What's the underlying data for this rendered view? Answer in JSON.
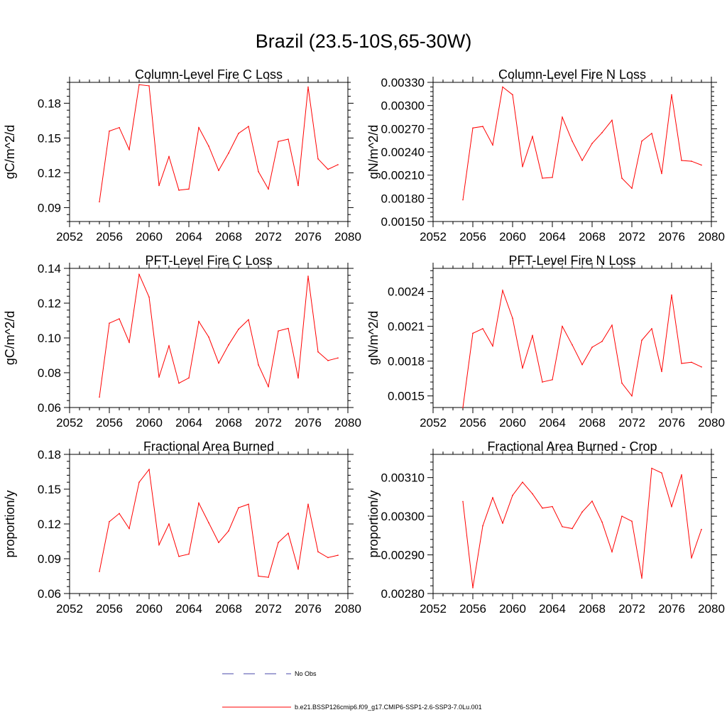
{
  "figure": {
    "title": "Brazil (23.5-10S,65-30W)"
  },
  "legend": {
    "entries": [
      {
        "label": "No Obs",
        "color": "#4a4aa8",
        "style": "dashed"
      },
      {
        "label": "b.e21.BSSP126cmip6.f09_g17.CMIP6-SSP1-2.6-SSP3-7.0Lu.001",
        "color": "#ff0000",
        "style": "solid"
      }
    ]
  },
  "chart_data": [
    {
      "type": "line",
      "title": "Column-Level Fire C Loss",
      "ylabel": "gC/m^2/d",
      "xlim": [
        2052,
        2080
      ],
      "ylim": [
        0.078,
        0.198
      ],
      "xticks": [
        2052,
        2056,
        2060,
        2064,
        2068,
        2072,
        2076,
        2080
      ],
      "xtick_labels": [
        "2052",
        "2056",
        "2060",
        "2064",
        "2068",
        "2072",
        "2076",
        "2080"
      ],
      "yticks": [
        0.09,
        0.12,
        0.15,
        0.18
      ],
      "ytick_labels": [
        "0.09",
        "0.12",
        "0.15",
        "0.18"
      ],
      "series": [
        {
          "color": "#ff0000",
          "x": [
            2055,
            2056,
            2057,
            2058,
            2059,
            2060,
            2061,
            2062,
            2063,
            2064,
            2065,
            2066,
            2067,
            2068,
            2069,
            2070,
            2071,
            2072,
            2073,
            2074,
            2075,
            2076,
            2077,
            2078,
            2079
          ],
          "values": [
            0.095,
            0.156,
            0.159,
            0.14,
            0.196,
            0.195,
            0.109,
            0.134,
            0.105,
            0.106,
            0.159,
            0.143,
            0.122,
            0.137,
            0.154,
            0.16,
            0.121,
            0.106,
            0.147,
            0.149,
            0.109,
            0.194,
            0.132,
            0.123,
            0.127
          ]
        }
      ]
    },
    {
      "type": "line",
      "title": "Column-Level Fire N Loss",
      "ylabel": "gN/m^2/d",
      "xlim": [
        2052,
        2080
      ],
      "ylim": [
        0.0015,
        0.0033
      ],
      "xticks": [
        2052,
        2056,
        2060,
        2064,
        2068,
        2072,
        2076,
        2080
      ],
      "xtick_labels": [
        "2052",
        "2056",
        "2060",
        "2064",
        "2068",
        "2072",
        "2076",
        "2080"
      ],
      "yticks": [
        0.0015,
        0.0018,
        0.0021,
        0.0024,
        0.0027,
        0.003,
        0.0033
      ],
      "ytick_labels": [
        "0.00150",
        "0.00180",
        "0.00210",
        "0.00240",
        "0.00270",
        "0.00300",
        "0.00330"
      ],
      "series": [
        {
          "color": "#ff0000",
          "x": [
            2055,
            2056,
            2057,
            2058,
            2059,
            2060,
            2061,
            2062,
            2063,
            2064,
            2065,
            2066,
            2067,
            2068,
            2069,
            2070,
            2071,
            2072,
            2073,
            2074,
            2075,
            2076,
            2077,
            2078,
            2079
          ],
          "values": [
            0.00178,
            0.00271,
            0.00273,
            0.00249,
            0.00324,
            0.00314,
            0.00221,
            0.0026,
            0.00206,
            0.00207,
            0.00285,
            0.00254,
            0.00229,
            0.00251,
            0.00265,
            0.00281,
            0.00206,
            0.00193,
            0.00254,
            0.00264,
            0.00212,
            0.00314,
            0.00229,
            0.00228,
            0.00223
          ]
        }
      ]
    },
    {
      "type": "line",
      "title": "PFT-Level Fire C Loss",
      "ylabel": "gC/m^2/d",
      "xlim": [
        2052,
        2080
      ],
      "ylim": [
        0.06,
        0.14
      ],
      "xticks": [
        2052,
        2056,
        2060,
        2064,
        2068,
        2072,
        2076,
        2080
      ],
      "xtick_labels": [
        "2052",
        "2056",
        "2060",
        "2064",
        "2068",
        "2072",
        "2076",
        "2080"
      ],
      "yticks": [
        0.06,
        0.08,
        0.1,
        0.12,
        0.14
      ],
      "ytick_labels": [
        "0.06",
        "0.08",
        "0.10",
        "0.12",
        "0.14"
      ],
      "series": [
        {
          "color": "#ff0000",
          "x": [
            2055,
            2056,
            2057,
            2058,
            2059,
            2060,
            2061,
            2062,
            2063,
            2064,
            2065,
            2066,
            2067,
            2068,
            2069,
            2070,
            2071,
            2072,
            2073,
            2074,
            2075,
            2076,
            2077,
            2078,
            2079
          ],
          "values": [
            0.066,
            0.1085,
            0.111,
            0.0975,
            0.1365,
            0.1235,
            0.0775,
            0.0955,
            0.074,
            0.077,
            0.1095,
            0.1005,
            0.0855,
            0.096,
            0.105,
            0.1105,
            0.0845,
            0.072,
            0.104,
            0.1055,
            0.077,
            0.1355,
            0.092,
            0.087,
            0.0885
          ]
        }
      ]
    },
    {
      "type": "line",
      "title": "PFT-Level Fire N Loss",
      "ylabel": "gN/m^2/d",
      "xlim": [
        2052,
        2080
      ],
      "ylim": [
        0.0014,
        0.0026
      ],
      "xticks": [
        2052,
        2056,
        2060,
        2064,
        2068,
        2072,
        2076,
        2080
      ],
      "xtick_labels": [
        "2052",
        "2056",
        "2060",
        "2064",
        "2068",
        "2072",
        "2076",
        "2080"
      ],
      "yticks": [
        0.0015,
        0.0018,
        0.0021,
        0.0024
      ],
      "ytick_labels": [
        "0.0015",
        "0.0018",
        "0.0021",
        "0.0024"
      ],
      "series": [
        {
          "color": "#ff0000",
          "x": [
            2055,
            2056,
            2057,
            2058,
            2059,
            2060,
            2061,
            2062,
            2063,
            2064,
            2065,
            2066,
            2067,
            2068,
            2069,
            2070,
            2071,
            2072,
            2073,
            2074,
            2075,
            2076,
            2077,
            2078,
            2079
          ],
          "values": [
            0.0014,
            0.00204,
            0.00208,
            0.00193,
            0.00241,
            0.00217,
            0.00174,
            0.00202,
            0.00162,
            0.00164,
            0.0021,
            0.00194,
            0.00177,
            0.00192,
            0.00197,
            0.00211,
            0.00161,
            0.0015,
            0.00198,
            0.00208,
            0.00171,
            0.00237,
            0.00178,
            0.00179,
            0.00175
          ]
        }
      ]
    },
    {
      "type": "line",
      "title": "Fractional Area Burned",
      "ylabel": "proportion/y",
      "xlim": [
        2052,
        2080
      ],
      "ylim": [
        0.06,
        0.18
      ],
      "xticks": [
        2052,
        2056,
        2060,
        2064,
        2068,
        2072,
        2076,
        2080
      ],
      "xtick_labels": [
        "2052",
        "2056",
        "2060",
        "2064",
        "2068",
        "2072",
        "2076",
        "2080"
      ],
      "yticks": [
        0.06,
        0.09,
        0.12,
        0.15,
        0.18
      ],
      "ytick_labels": [
        "0.06",
        "0.09",
        "0.12",
        "0.15",
        "0.18"
      ],
      "series": [
        {
          "color": "#ff0000",
          "x": [
            2055,
            2056,
            2057,
            2058,
            2059,
            2060,
            2061,
            2062,
            2063,
            2064,
            2065,
            2066,
            2067,
            2068,
            2069,
            2070,
            2071,
            2072,
            2073,
            2074,
            2075,
            2076,
            2077,
            2078,
            2079
          ],
          "values": [
            0.079,
            0.122,
            0.129,
            0.116,
            0.156,
            0.167,
            0.102,
            0.12,
            0.092,
            0.094,
            0.138,
            0.121,
            0.104,
            0.114,
            0.134,
            0.137,
            0.075,
            0.074,
            0.104,
            0.112,
            0.081,
            0.137,
            0.096,
            0.091,
            0.093
          ]
        }
      ]
    },
    {
      "type": "line",
      "title": "Fractional Area Burned - Crop",
      "ylabel": "proportion/y",
      "xlim": [
        2052,
        2080
      ],
      "ylim": [
        0.0028,
        0.00316
      ],
      "xticks": [
        2052,
        2056,
        2060,
        2064,
        2068,
        2072,
        2076,
        2080
      ],
      "xtick_labels": [
        "2052",
        "2056",
        "2060",
        "2064",
        "2068",
        "2072",
        "2076",
        "2080"
      ],
      "yticks": [
        0.0028,
        0.0029,
        0.003,
        0.0031
      ],
      "ytick_labels": [
        "0.00280",
        "0.00290",
        "0.00300",
        "0.00310"
      ],
      "series": [
        {
          "color": "#ff0000",
          "x": [
            2055,
            2056,
            2057,
            2058,
            2059,
            2060,
            2061,
            2062,
            2063,
            2064,
            2065,
            2066,
            2067,
            2068,
            2069,
            2070,
            2071,
            2072,
            2073,
            2074,
            2075,
            2076,
            2077,
            2078,
            2079
          ],
          "values": [
            0.003038,
            0.002815,
            0.002975,
            0.003048,
            0.002982,
            0.003054,
            0.003088,
            0.003058,
            0.003021,
            0.003025,
            0.002973,
            0.002968,
            0.003011,
            0.003039,
            0.002985,
            0.002908,
            0.003,
            0.002987,
            0.00284,
            0.003124,
            0.003112,
            0.003025,
            0.003107,
            0.002892,
            0.002966
          ]
        }
      ]
    }
  ]
}
